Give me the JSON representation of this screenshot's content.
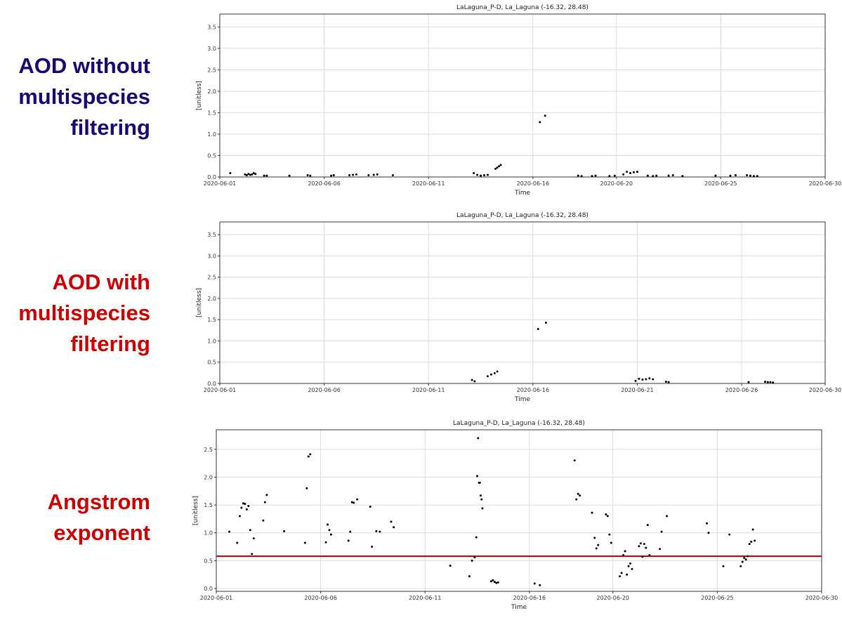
{
  "labels": {
    "aod_without": {
      "line1": "AOD without",
      "line2": "multispecies",
      "line3": "filtering",
      "color": "#1a0873"
    },
    "aod_with": {
      "line1": "AOD with",
      "line2": "multispecies",
      "line3": "filtering",
      "color": "#cc0000"
    },
    "angstrom": {
      "line1": "Angstrom",
      "line2": "exponent",
      "color": "#cc0000"
    }
  },
  "chart_data": [
    {
      "type": "scatter",
      "title": "LaLaguna_P-D, La_Laguna (-16.32, 28.48)",
      "xlabel": "Time",
      "ylabel": "[unitless]",
      "xlim": [
        "2020-06-01",
        "2020-06-30"
      ],
      "ylim": [
        0,
        3.8
      ],
      "xticks": [
        "2020-06-01",
        "2020-06-06",
        "2020-06-11",
        "2020-06-16",
        "2020-06-20",
        "2020-06-25",
        "2020-06-30"
      ],
      "yticks": [
        "0.0",
        "0.5",
        "1.0",
        "1.5",
        "2.0",
        "2.5",
        "3.0",
        "3.5"
      ],
      "grid": true,
      "series": [
        {
          "color": "#000000",
          "x": [
            "2020-06-01T12:00",
            "2020-06-02T05:00",
            "2020-06-02T07:00",
            "2020-06-02T09:00",
            "2020-06-02T11:00",
            "2020-06-02T13:00",
            "2020-06-02T15:00",
            "2020-06-02T17:00",
            "2020-06-03T03:00",
            "2020-06-03T06:00",
            "2020-06-04T08:00",
            "2020-06-05T05:00",
            "2020-06-05T08:00",
            "2020-06-06T08:00",
            "2020-06-06T11:00",
            "2020-06-07T05:00",
            "2020-06-07T09:00",
            "2020-06-07T13:00",
            "2020-06-08T03:00",
            "2020-06-08T09:00",
            "2020-06-08T13:00",
            "2020-06-09T07:00",
            "2020-06-13T04:00",
            "2020-06-13T08:00",
            "2020-06-13T12:00",
            "2020-06-13T16:00",
            "2020-06-13T20:00",
            "2020-06-14T05:00",
            "2020-06-14T07:00",
            "2020-06-14T09:00",
            "2020-06-14T11:00",
            "2020-06-16T08:00",
            "2020-06-16T14:00",
            "2020-06-18T04:00",
            "2020-06-18T08:00",
            "2020-06-18T20:00",
            "2020-06-19T00:00",
            "2020-06-19T16:00",
            "2020-06-19T22:00",
            "2020-06-20T08:00",
            "2020-06-20T12:00",
            "2020-06-20T16:00",
            "2020-06-20T20:00",
            "2020-06-21T00:00",
            "2020-06-21T12:00",
            "2020-06-21T18:00",
            "2020-06-21T22:00",
            "2020-06-22T12:00",
            "2020-06-22T17:00",
            "2020-06-23T04:00",
            "2020-06-24T18:00",
            "2020-06-25T11:00",
            "2020-06-25T17:00",
            "2020-06-26T06:00",
            "2020-06-26T10:00",
            "2020-06-26T14:00",
            "2020-06-26T18:00"
          ],
          "y": [
            0.09,
            0.06,
            0.04,
            0.07,
            0.05,
            0.06,
            0.09,
            0.07,
            0.03,
            0.03,
            0.03,
            0.04,
            0.03,
            0.03,
            0.04,
            0.04,
            0.05,
            0.06,
            0.04,
            0.05,
            0.06,
            0.04,
            0.09,
            0.05,
            0.03,
            0.04,
            0.05,
            0.19,
            0.22,
            0.25,
            0.28,
            1.28,
            1.43,
            0.03,
            0.02,
            0.02,
            0.03,
            0.02,
            0.03,
            0.06,
            0.12,
            0.09,
            0.11,
            0.12,
            0.03,
            0.02,
            0.03,
            0.03,
            0.04,
            0.02,
            0.03,
            0.03,
            0.04,
            0.04,
            0.03,
            0.02,
            0.02
          ]
        }
      ]
    },
    {
      "type": "scatter",
      "title": "LaLaguna_P-D, La_Laguna (-16.32, 28.48)",
      "xlabel": "Time",
      "ylabel": "[unitless]",
      "xlim": [
        "2020-06-01",
        "2020-06-30"
      ],
      "ylim": [
        0,
        3.8
      ],
      "xticks": [
        "2020-06-01",
        "2020-06-06",
        "2020-06-11",
        "2020-06-16",
        "2020-06-21",
        "2020-06-26",
        "2020-06-30"
      ],
      "yticks": [
        "0.0",
        "0.5",
        "1.0",
        "1.5",
        "2.0",
        "2.5",
        "3.0",
        "3.5"
      ],
      "grid": true,
      "series": [
        {
          "color": "#000000",
          "x": [
            "2020-06-13T02:00",
            "2020-06-13T05:00",
            "2020-06-13T20:00",
            "2020-06-14T00:00",
            "2020-06-14T04:00",
            "2020-06-14T07:00",
            "2020-06-16T06:00",
            "2020-06-16T15:00",
            "2020-06-20T22:00",
            "2020-06-21T02:00",
            "2020-06-21T06:00",
            "2020-06-21T10:00",
            "2020-06-21T14:00",
            "2020-06-21T18:00",
            "2020-06-22T09:00",
            "2020-06-22T12:00",
            "2020-06-26T08:00",
            "2020-06-27T03:00",
            "2020-06-27T06:00",
            "2020-06-27T09:00",
            "2020-06-27T12:00"
          ],
          "y": [
            0.08,
            0.05,
            0.17,
            0.21,
            0.24,
            0.28,
            1.28,
            1.43,
            0.06,
            0.11,
            0.09,
            0.1,
            0.12,
            0.1,
            0.04,
            0.03,
            0.03,
            0.04,
            0.03,
            0.03,
            0.02
          ]
        }
      ]
    },
    {
      "type": "scatter",
      "title": "LaLaguna_P-D, La_Laguna (-16.32, 28.48)",
      "xlabel": "Time",
      "ylabel": "[unitless]",
      "xlim": [
        "2020-06-01",
        "2020-06-30"
      ],
      "ylim": [
        -0.05,
        2.85
      ],
      "xticks": [
        "2020-06-01",
        "2020-06-06",
        "2020-06-11",
        "2020-06-16",
        "2020-06-20",
        "2020-06-25",
        "2020-06-30"
      ],
      "yticks": [
        "0.0",
        "0.5",
        "1.0",
        "1.5",
        "2.0",
        "2.5"
      ],
      "grid": true,
      "hline": {
        "y": 0.58,
        "color": "#cc0000"
      },
      "series": [
        {
          "color": "#000000",
          "x": [
            "2020-06-01T15:00",
            "2020-06-02T00:00",
            "2020-06-02T03:00",
            "2020-06-02T05:00",
            "2020-06-02T07:00",
            "2020-06-02T09:00",
            "2020-06-02T11:00",
            "2020-06-02T13:00",
            "2020-06-02T15:00",
            "2020-06-02T17:00",
            "2020-06-02T19:00",
            "2020-06-03T06:00",
            "2020-06-03T08:00",
            "2020-06-03T10:00",
            "2020-06-04T06:00",
            "2020-06-05T06:00",
            "2020-06-05T08:00",
            "2020-06-05T10:00",
            "2020-06-05T12:00",
            "2020-06-06T06:00",
            "2020-06-06T08:00",
            "2020-06-06T10:00",
            "2020-06-06T12:00",
            "2020-06-07T08:00",
            "2020-06-07T10:00",
            "2020-06-07T12:00",
            "2020-06-07T14:00",
            "2020-06-07T18:00",
            "2020-06-08T09:00",
            "2020-06-08T11:00",
            "2020-06-08T16:00",
            "2020-06-08T20:00",
            "2020-06-09T09:00",
            "2020-06-09T12:00",
            "2020-06-12T05:00",
            "2020-06-13T03:00",
            "2020-06-13T06:00",
            "2020-06-13T09:00",
            "2020-06-13T11:00",
            "2020-06-13T12:00",
            "2020-06-13T13:00",
            "2020-06-13T14:00",
            "2020-06-13T15:00",
            "2020-06-13T16:00",
            "2020-06-13T17:00",
            "2020-06-13T18:00",
            "2020-06-14T04:00",
            "2020-06-14T06:00",
            "2020-06-14T08:00",
            "2020-06-14T10:00",
            "2020-06-14T12:00",
            "2020-06-16T06:00",
            "2020-06-16T12:00",
            "2020-06-18T04:00",
            "2020-06-18T06:00",
            "2020-06-18T08:00",
            "2020-06-18T10:00",
            "2020-06-19T00:00",
            "2020-06-19T03:00",
            "2020-06-19T05:00",
            "2020-06-19T07:00",
            "2020-06-19T16:00",
            "2020-06-19T18:00",
            "2020-06-19T20:00",
            "2020-06-19T22:00",
            "2020-06-20T08:00",
            "2020-06-20T10:00",
            "2020-06-20T12:00",
            "2020-06-20T14:00",
            "2020-06-20T16:00",
            "2020-06-20T18:00",
            "2020-06-20T20:00",
            "2020-06-20T22:00",
            "2020-06-21T06:00",
            "2020-06-21T08:00",
            "2020-06-21T10:00",
            "2020-06-21T12:00",
            "2020-06-21T14:00",
            "2020-06-21T16:00",
            "2020-06-21T18:00",
            "2020-06-22T06:00",
            "2020-06-22T08:00",
            "2020-06-22T14:00",
            "2020-06-24T12:00",
            "2020-06-24T14:00",
            "2020-06-25T07:00",
            "2020-06-25T14:00",
            "2020-06-26T03:00",
            "2020-06-26T05:00",
            "2020-06-26T07:00",
            "2020-06-26T09:00",
            "2020-06-26T11:00",
            "2020-06-26T13:00",
            "2020-06-26T15:00",
            "2020-06-26T17:00",
            "2020-06-26T19:00"
          ],
          "y": [
            1.02,
            0.82,
            1.3,
            1.45,
            1.53,
            1.52,
            1.42,
            1.48,
            1.05,
            0.62,
            0.9,
            1.22,
            1.55,
            1.68,
            1.03,
            0.82,
            1.8,
            2.37,
            2.41,
            0.83,
            1.15,
            1.05,
            0.97,
            0.86,
            1.02,
            1.55,
            1.54,
            1.6,
            1.47,
            0.75,
            1.03,
            1.02,
            1.2,
            1.1,
            0.41,
            0.22,
            0.5,
            0.56,
            0.92,
            2.02,
            2.7,
            1.9,
            1.9,
            1.67,
            1.6,
            1.44,
            0.13,
            0.15,
            0.12,
            0.1,
            0.11,
            0.09,
            0.06,
            2.3,
            1.6,
            1.7,
            1.67,
            1.36,
            0.91,
            0.72,
            0.78,
            1.33,
            1.3,
            0.97,
            0.82,
            0.22,
            0.28,
            0.6,
            0.67,
            0.25,
            0.4,
            0.45,
            0.35,
            0.76,
            0.81,
            0.57,
            0.8,
            0.73,
            1.14,
            0.6,
            0.71,
            1.02,
            1.3,
            1.17,
            1.0,
            0.4,
            0.97,
            0.4,
            0.48,
            0.55,
            0.52,
            0.58,
            0.8,
            0.84,
            1.06,
            0.86
          ]
        }
      ]
    }
  ]
}
